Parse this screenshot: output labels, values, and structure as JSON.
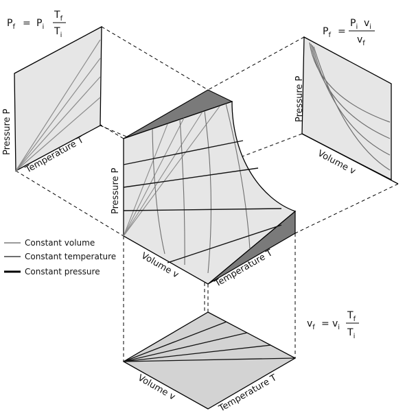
{
  "equations": {
    "pt": {
      "lhs": "P",
      "lhs_sub": "f",
      "eq": "=",
      "a": "P",
      "a_sub": "i",
      "num": "T",
      "num_sub": "f",
      "den": "T",
      "den_sub": "i"
    },
    "pv": {
      "lhs": "P",
      "lhs_sub": "f",
      "eq": "=",
      "num_a": "P",
      "num_a_sub": "i",
      "num_b": "v",
      "num_b_sub": "i",
      "den": "v",
      "den_sub": "f"
    },
    "vt": {
      "lhs": "v",
      "lhs_sub": "f",
      "eq": "=",
      "a": "v",
      "a_sub": "i",
      "num": "T",
      "num_sub": "f",
      "den": "T",
      "den_sub": "i"
    }
  },
  "axes": {
    "pt_pressure": "Pressure  P",
    "pt_temperature": "Temperature  T",
    "pv_pressure": "Pressure  P",
    "pv_volume": "Volume  v",
    "surf_pressure": "Pressure  P",
    "surf_volume": "Volume  v",
    "surf_temperature": "Temperature  T",
    "vt_volume": "Volume  v",
    "vt_temperature": "Temperature  T"
  },
  "legend": {
    "items": [
      {
        "label": "Constant volume",
        "color": "#9a9a9a"
      },
      {
        "label": "Constant temperature",
        "color": "#6e6e6e"
      },
      {
        "label": "Constant pressure",
        "color": "#000000"
      }
    ]
  },
  "colors": {
    "panel_fill": "#e6e6e6",
    "surface_fill": "#e6e6e6",
    "side_fill": "#7a7a7a",
    "base_fill": "#d3d3d3"
  }
}
